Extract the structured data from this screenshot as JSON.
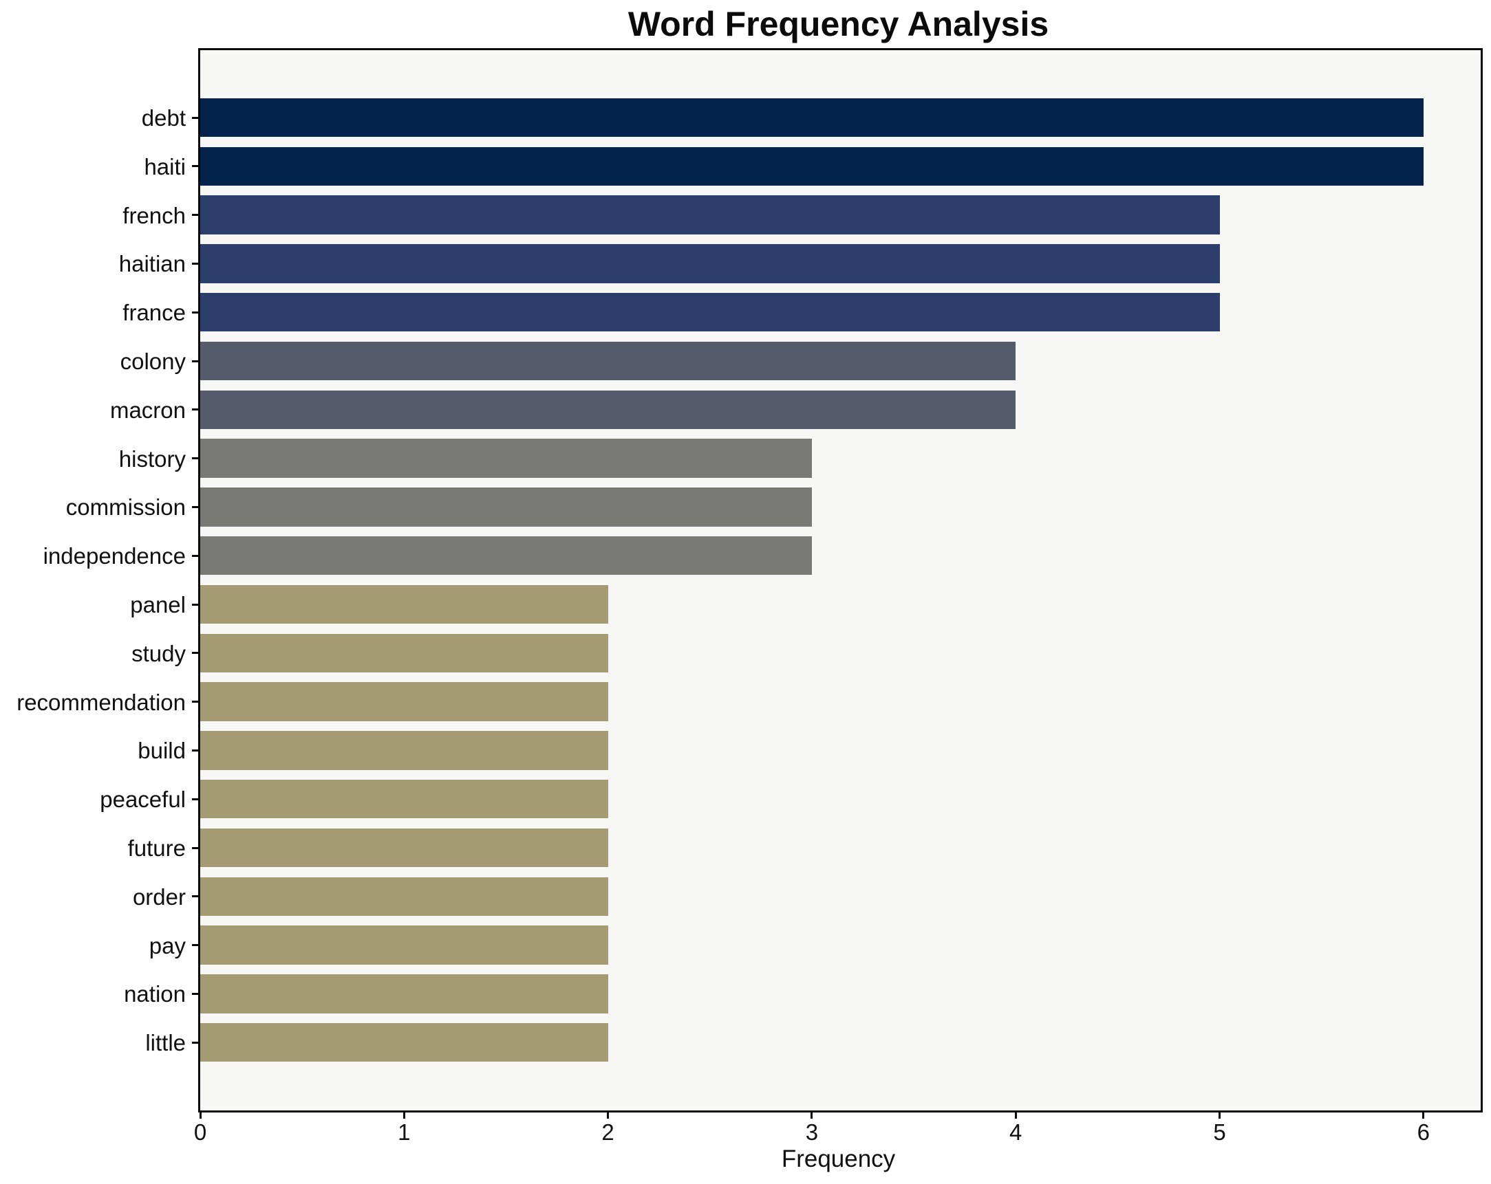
{
  "chart_data": {
    "type": "bar",
    "orientation": "horizontal",
    "title": "Word Frequency Analysis",
    "xlabel": "Frequency",
    "ylabel": "",
    "categories": [
      "debt",
      "haiti",
      "french",
      "haitian",
      "france",
      "colony",
      "macron",
      "history",
      "commission",
      "independence",
      "panel",
      "study",
      "recommendation",
      "build",
      "peaceful",
      "future",
      "order",
      "pay",
      "nation",
      "little"
    ],
    "values": [
      6,
      6,
      5,
      5,
      5,
      4,
      4,
      3,
      3,
      3,
      2,
      2,
      2,
      2,
      2,
      2,
      2,
      2,
      2,
      2
    ],
    "xticks": [
      0,
      1,
      2,
      3,
      4,
      5,
      6
    ],
    "xlim": [
      0,
      6.28
    ],
    "grid": false,
    "legend": null,
    "colors": {
      "value_6": "#04234c",
      "value_5": "#2c3e6b",
      "value_4": "#565c6c",
      "value_3": "#7a7a75",
      "value_2": "#a49b72"
    },
    "plot_background": "#f7f7f6",
    "figure_background": "#ffffff",
    "spine_color": "#0a0a0a"
  }
}
